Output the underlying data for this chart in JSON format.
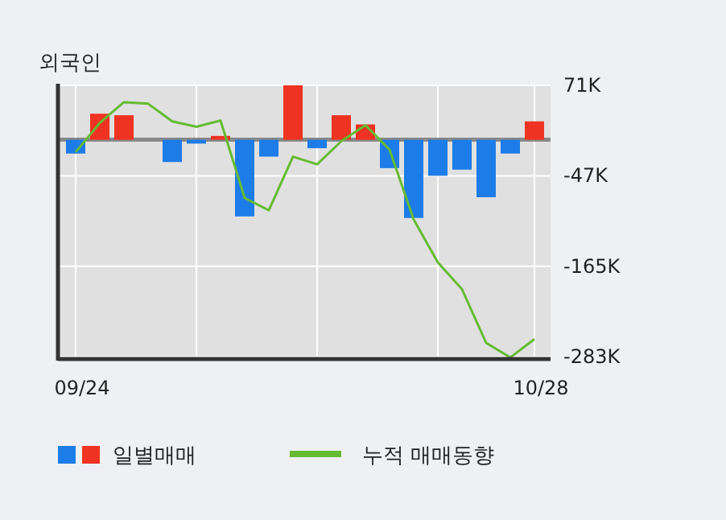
{
  "chart_data": {
    "type": "bar",
    "title": "외국인",
    "categories": [
      "09/24",
      null,
      null,
      null,
      null,
      null,
      null,
      null,
      null,
      null,
      null,
      null,
      null,
      null,
      null,
      null,
      null,
      null,
      null,
      "10/28"
    ],
    "series": [
      {
        "name": "일별매매",
        "values": [
          -18,
          34,
          32,
          0,
          -29,
          -5,
          5,
          -100,
          -22,
          71,
          -11,
          32,
          20,
          -37,
          -102,
          -47,
          -39,
          -75,
          -18,
          24
        ],
        "colors": [
          "#1e7ce8",
          "#ee3322",
          "#ee3322",
          "#1e7ce8",
          "#1e7ce8",
          "#1e7ce8",
          "#ee3322",
          "#1e7ce8",
          "#1e7ce8",
          "#ee3322",
          "#1e7ce8",
          "#ee3322",
          "#ee3322",
          "#1e7ce8",
          "#1e7ce8",
          "#1e7ce8",
          "#1e7ce8",
          "#1e7ce8",
          "#1e7ce8",
          "#ee3322"
        ]
      },
      {
        "name": "누적 매매동향",
        "type": "line",
        "color": "#66bb33",
        "values": [
          -16,
          22,
          49,
          47,
          24,
          17,
          25,
          -76,
          -92,
          -22,
          -32,
          -2,
          19,
          -13,
          -104,
          -160,
          -195,
          -265,
          -284,
          -260
        ]
      }
    ],
    "ylim": [
      -286,
      71
    ],
    "yticks": [
      {
        "value": 71,
        "label": "71K"
      },
      {
        "value": -47,
        "label": "-47K"
      },
      {
        "value": -165,
        "label": "-165K"
      },
      {
        "value": -283,
        "label": "-283K"
      }
    ],
    "ref_lines": [
      {
        "axis": "y",
        "value": 0,
        "color": "#888888"
      }
    ],
    "grid": true,
    "legend": "bottom"
  }
}
